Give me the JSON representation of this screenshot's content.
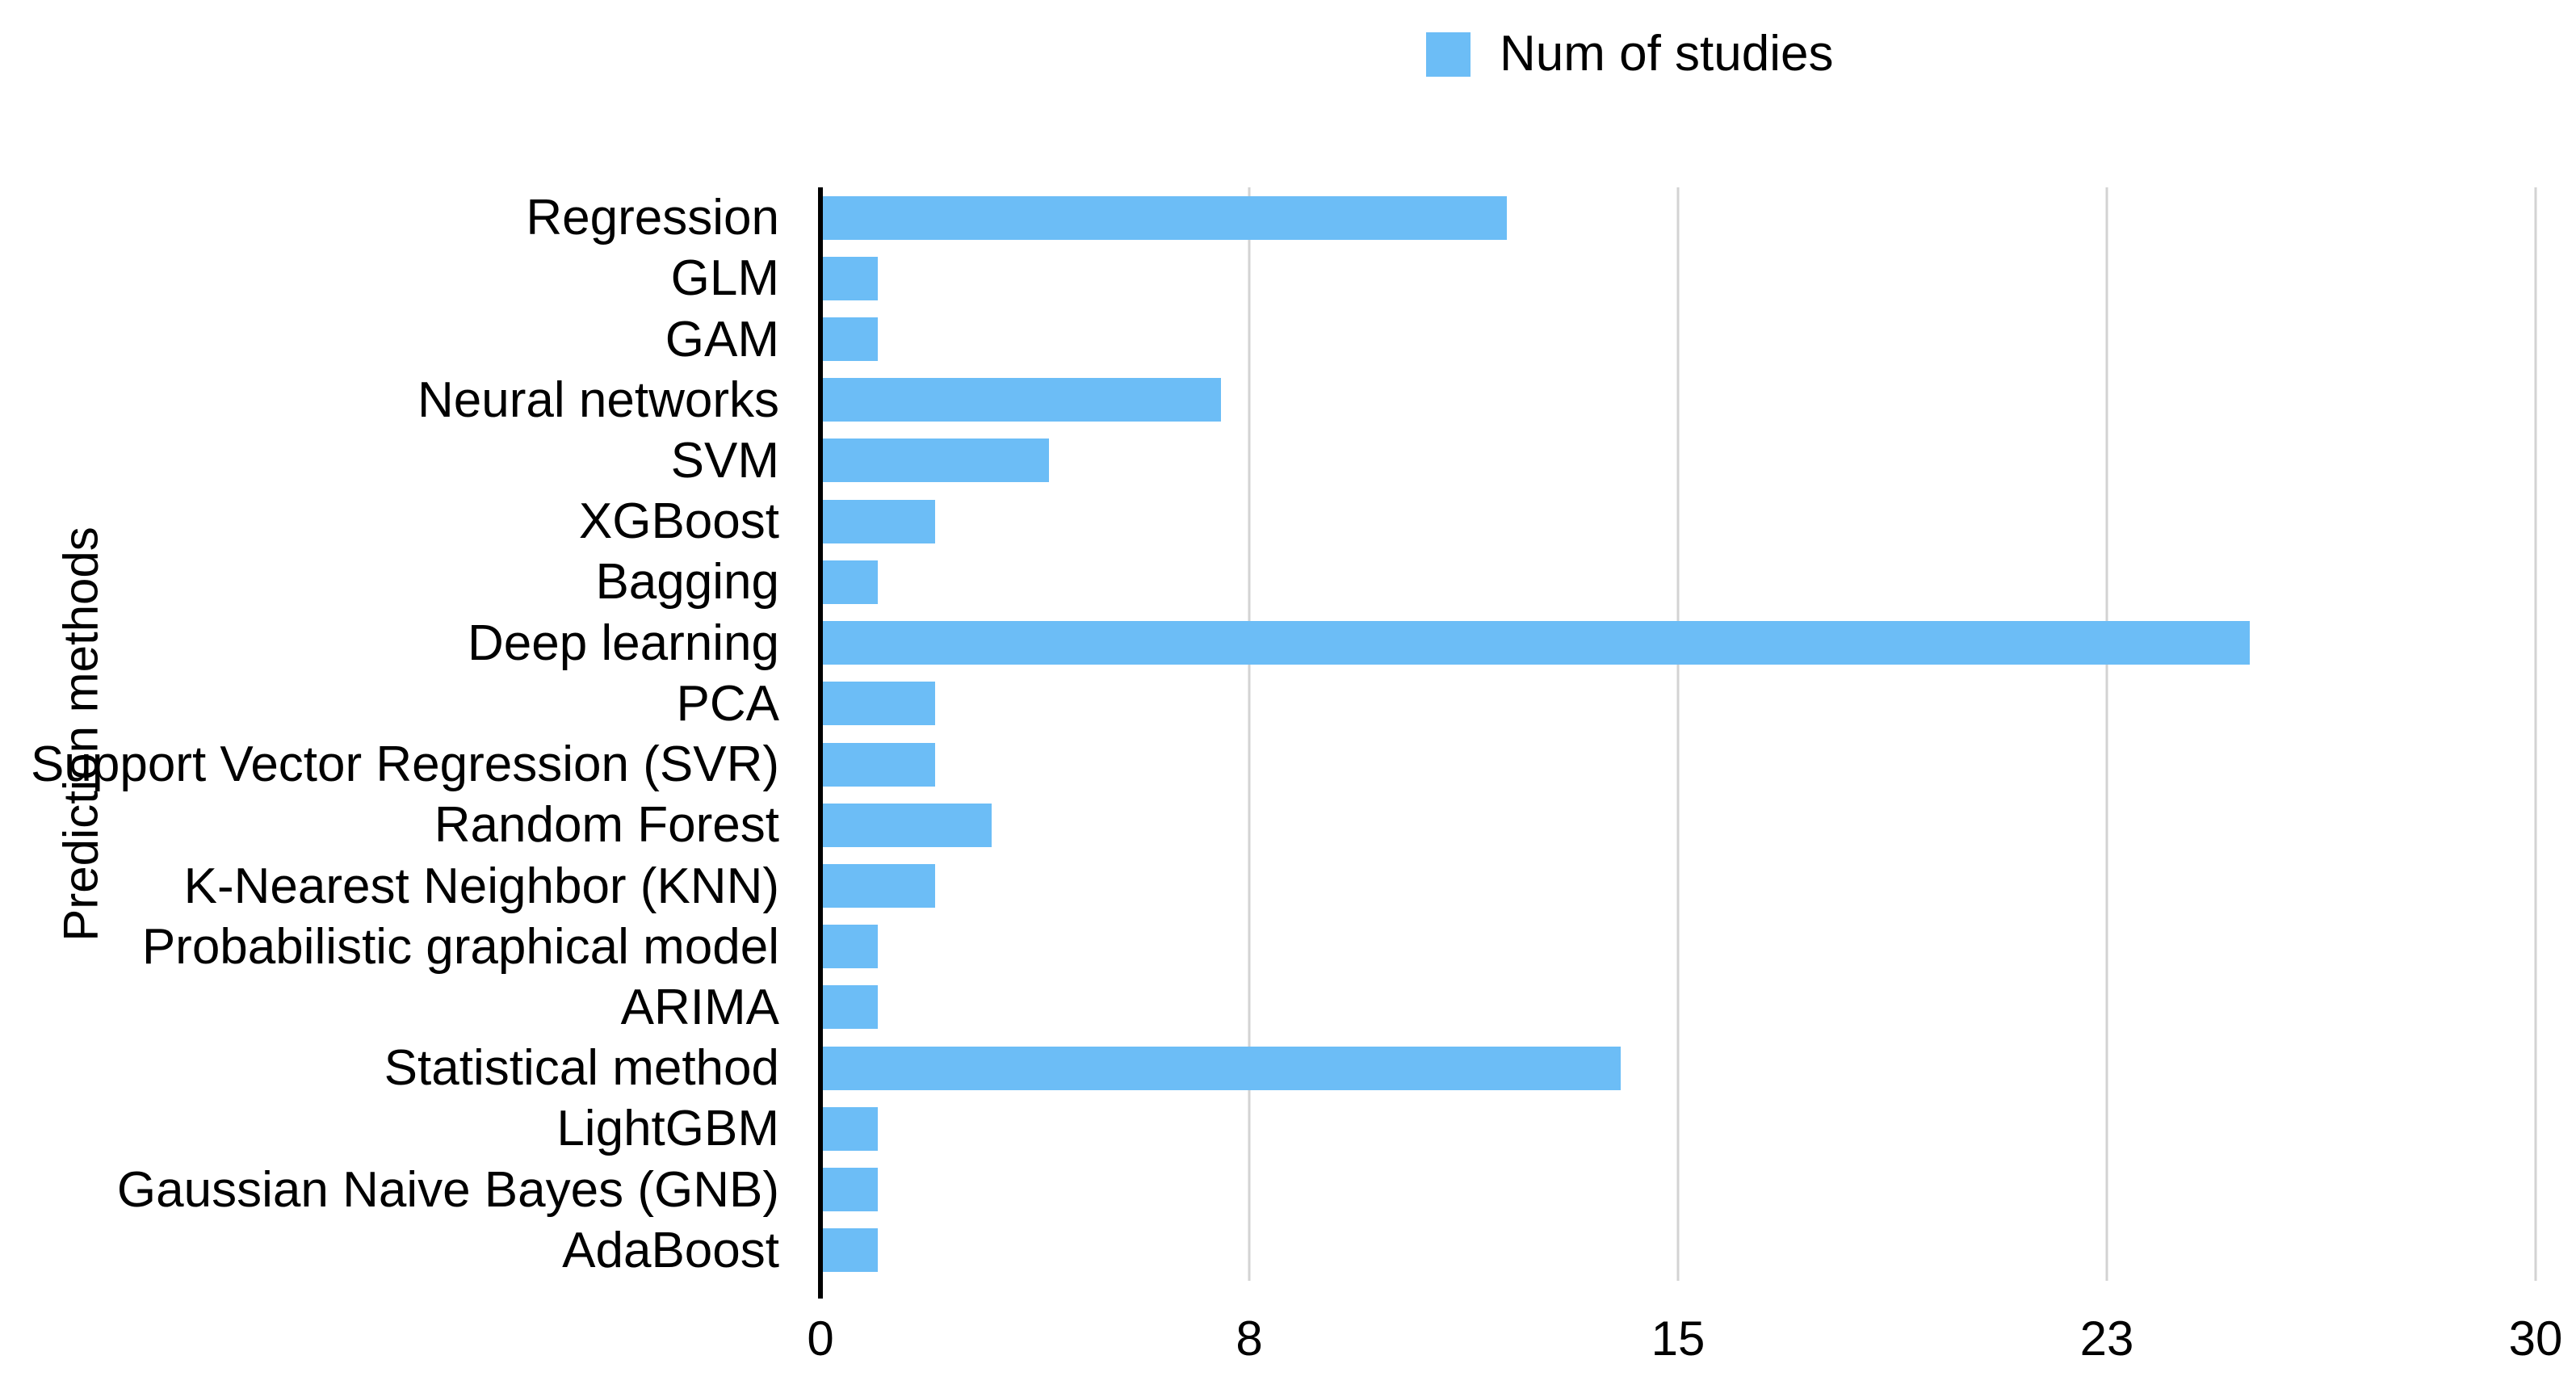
{
  "chart_data": {
    "type": "bar",
    "orientation": "horizontal",
    "title": "",
    "categories": [
      "Regression",
      "GLM",
      "GAM",
      "Neural networks",
      "SVM",
      "XGBoost",
      "Bagging",
      "Deep learning",
      "PCA",
      "Support Vector Regression (SVR)",
      "Random Forest",
      "K-Nearest Neighbor (KNN)",
      "Probabilistic graphical model",
      "ARIMA",
      "Statistical method",
      "LightGBM",
      "Gaussian Naive Bayes (GNB)",
      "AdaBoost"
    ],
    "series": [
      {
        "name": "Num of studies",
        "values": [
          12,
          1,
          1,
          7,
          4,
          2,
          1,
          25,
          2,
          2,
          3,
          2,
          1,
          1,
          14,
          1,
          1,
          1
        ]
      }
    ],
    "xlabel": "",
    "ylabel": "Prediction methods",
    "xlim": [
      0,
      30
    ],
    "xticks": {
      "positions": [
        0,
        7.5,
        15,
        22.5,
        30
      ],
      "labels": [
        "0",
        "8",
        "15",
        "23",
        "30"
      ]
    },
    "grid": true,
    "legend_position": "top-center",
    "colors": {
      "bar": "#6CBDF6",
      "gridline": "#D3D3D3",
      "axis": "#000000",
      "text": "#000000",
      "background": "#FFFFFF"
    }
  }
}
